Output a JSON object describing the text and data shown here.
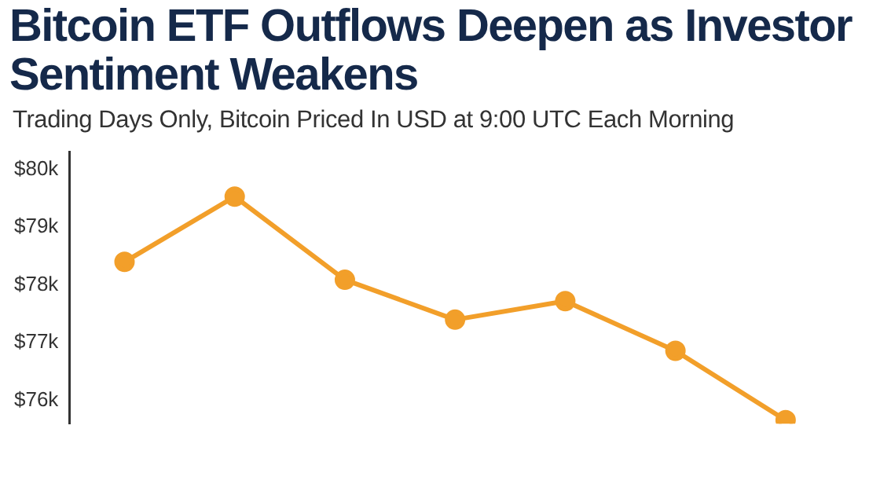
{
  "chart_data": {
    "type": "line",
    "title": "Bitcoin ETF Outflows Deepen as Investor Sentiment Weakens",
    "subtitle": "Trading Days Only, Bitcoin Priced In USD at 9:00 UTC Each Morning",
    "categories": [
      null,
      null,
      null,
      null,
      null,
      null,
      null
    ],
    "series": [
      {
        "color": "#f29f2a",
        "values": [
          78400,
          79530,
          78090,
          77400,
          77720,
          76860,
          75660
        ]
      }
    ],
    "ylim": [
      75600,
      80300
    ],
    "yticks": [
      {
        "value": 76000,
        "label": "$76k"
      },
      {
        "value": 77000,
        "label": "$77k"
      },
      {
        "value": 78000,
        "label": "$78k"
      },
      {
        "value": 79000,
        "label": "$79k"
      },
      {
        "value": 80000,
        "label": "$80k"
      }
    ],
    "grid": false,
    "legend": false,
    "marker": "circle",
    "line_style": "solid"
  }
}
